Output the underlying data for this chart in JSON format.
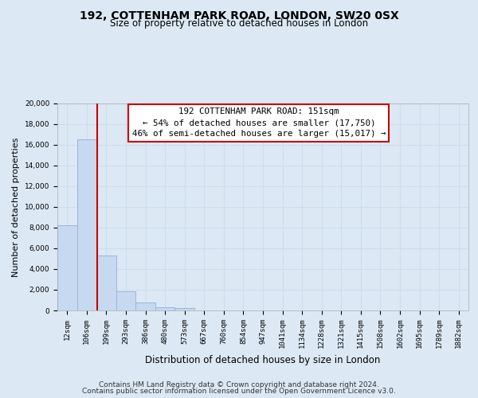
{
  "title": "192, COTTENHAM PARK ROAD, LONDON, SW20 0SX",
  "subtitle": "Size of property relative to detached houses in London",
  "xlabel": "Distribution of detached houses by size in London",
  "ylabel": "Number of detached properties",
  "bar_labels": [
    "12sqm",
    "106sqm",
    "199sqm",
    "293sqm",
    "386sqm",
    "480sqm",
    "573sqm",
    "667sqm",
    "760sqm",
    "854sqm",
    "947sqm",
    "1041sqm",
    "1134sqm",
    "1228sqm",
    "1321sqm",
    "1415sqm",
    "1508sqm",
    "1602sqm",
    "1695sqm",
    "1789sqm",
    "1882sqm"
  ],
  "bar_values": [
    8200,
    16550,
    5300,
    1850,
    780,
    310,
    220,
    0,
    0,
    0,
    0,
    0,
    0,
    0,
    0,
    0,
    0,
    0,
    0,
    0,
    0
  ],
  "bar_color": "#c6d9f0",
  "bar_edge_color": "#9ab5d9",
  "vline_x": 1.54,
  "vline_color": "#cc0000",
  "ylim": [
    0,
    20000
  ],
  "yticks": [
    0,
    2000,
    4000,
    6000,
    8000,
    10000,
    12000,
    14000,
    16000,
    18000,
    20000
  ],
  "grid_color": "#ccddee",
  "annotation_line1": "192 COTTENHAM PARK ROAD: 151sqm",
  "annotation_line2": "← 54% of detached houses are smaller (17,750)",
  "annotation_line3": "46% of semi-detached houses are larger (15,017) →",
  "annotation_box_color": "#ffffff",
  "annotation_box_edge_color": "#cc0000",
  "footnote1": "Contains HM Land Registry data © Crown copyright and database right 2024.",
  "footnote2": "Contains public sector information licensed under the Open Government Licence v3.0.",
  "bg_color": "#dce9f5",
  "plot_bg_color": "#dce9f5",
  "title_fontsize": 10,
  "subtitle_fontsize": 8.5,
  "ylabel_fontsize": 8,
  "xlabel_fontsize": 8.5,
  "tick_fontsize": 6.5,
  "annot_fontsize": 7.8,
  "footnote_fontsize": 6.5
}
